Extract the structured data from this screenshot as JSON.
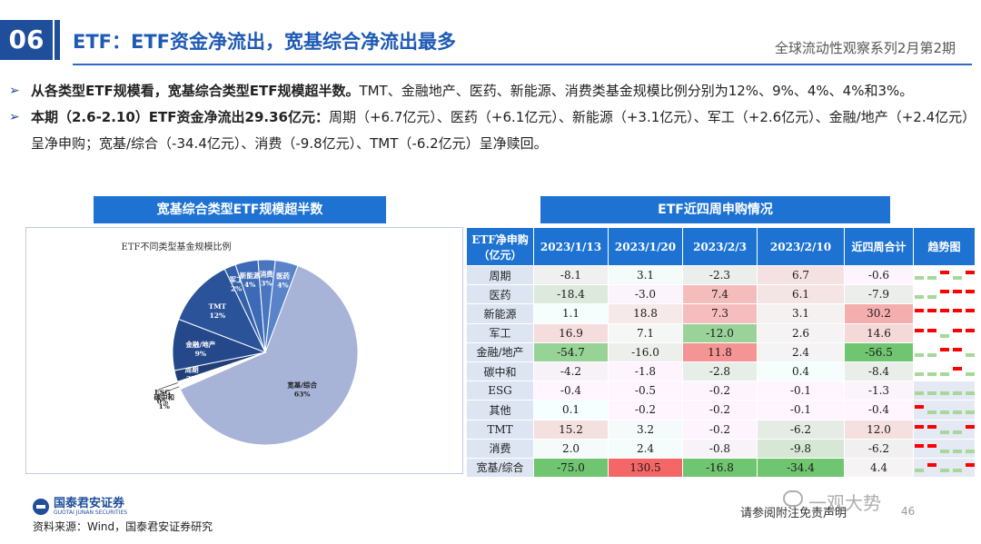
{
  "header": {
    "number": "06",
    "title": "ETF：ETF资金净流出，宽基综合净流出最多",
    "series": "全球流动性观察系列2月第2期"
  },
  "bullets": [
    {
      "bold": "从各类型ETF规模看，宽基综合类型ETF规模超半数。",
      "text": "TMT、金融地产、医药、新能源、消费类基金规模比例分别为12%、9%、4%、4%和3%。"
    },
    {
      "bold": "本期（2.6-2.10）ETF资金净流出29.36亿元：",
      "text": "周期（+6.7亿元）、医药（+6.1亿元）、新能源（+3.1亿元）、军工（+2.6亿元）、金融/地产（+2.4亿元）呈净申购；宽基/综合（-34.4亿元）、消费（-9.8亿元）、TMT（-6.2亿元）呈净赎回。"
    }
  ],
  "left_section_title": "宽基综合类型ETF规模超半数",
  "right_section_title": "ETF近四周申购情况",
  "chart_data": {
    "type": "pie",
    "title": "ETF不同类型基金规模比例",
    "slices": [
      {
        "label": "宽基/综合",
        "pct_label": "63%",
        "value": 63,
        "color": "#a7b4d8"
      },
      {
        "label": "碳中和",
        "pct_label": "1%",
        "value": 1,
        "color": "#ffffff"
      },
      {
        "label": "ESG",
        "pct_label": "0%",
        "value": 0.4,
        "color": "#ffffff"
      },
      {
        "label": "周期",
        "pct_label": "2%",
        "value": 2,
        "color": "#203f78"
      },
      {
        "label": "金融/地产",
        "pct_label": "9%",
        "value": 9,
        "color": "#24488a"
      },
      {
        "label": "TMT",
        "pct_label": "12%",
        "value": 12,
        "color": "#2a5399"
      },
      {
        "label": "军工",
        "pct_label": "2%",
        "value": 2,
        "color": "#3560aa"
      },
      {
        "label": "新能源",
        "pct_label": "4%",
        "value": 4,
        "color": "#3d6ab6"
      },
      {
        "label": "消费",
        "pct_label": "3%",
        "value": 3,
        "color": "#4a76c0"
      },
      {
        "label": "医药",
        "pct_label": "4%",
        "value": 4,
        "color": "#5a84c9"
      }
    ]
  },
  "table": {
    "header": [
      "ETF净申购（亿元）",
      "2023/1/13",
      "2023/1/20",
      "2023/2/3",
      "2023/2/10",
      "近四周合计",
      "趋势图"
    ],
    "rows": [
      {
        "name": "周期",
        "values": [
          "-8.1",
          "3.1",
          "-2.3",
          "6.7",
          "-0.6"
        ],
        "trend": [
          "g",
          "g",
          "r",
          "g",
          "r"
        ]
      },
      {
        "name": "医药",
        "values": [
          "-18.4",
          "-3.0",
          "7.4",
          "6.1",
          "-7.9"
        ],
        "trend": [
          "g",
          "g",
          "r",
          "r",
          "r"
        ]
      },
      {
        "name": "新能源",
        "values": [
          "1.1",
          "18.8",
          "7.3",
          "3.1",
          "30.2"
        ],
        "trend": [
          "r",
          "r",
          "r",
          "r",
          "r"
        ]
      },
      {
        "name": "军工",
        "values": [
          "16.9",
          "7.1",
          "-12.0",
          "2.6",
          "14.6"
        ],
        "trend": [
          "r",
          "r",
          "g",
          "r",
          "r"
        ]
      },
      {
        "name": "金融/地产",
        "values": [
          "-54.7",
          "-16.0",
          "11.8",
          "2.4",
          "-56.5"
        ],
        "trend": [
          "g",
          "g",
          "r",
          "r",
          "g"
        ]
      },
      {
        "name": "碳中和",
        "values": [
          "-4.2",
          "-1.8",
          "-2.8",
          "0.4",
          "-8.4"
        ],
        "trend": [
          "g",
          "g",
          "g",
          "r",
          "g"
        ]
      },
      {
        "name": "ESG",
        "values": [
          "-0.4",
          "-0.5",
          "-0.2",
          "-0.1",
          "-1.3"
        ],
        "trend": [
          "g",
          "g",
          "g",
          "g",
          "g"
        ]
      },
      {
        "name": "其他",
        "values": [
          "0.1",
          "-0.2",
          "-0.2",
          "-0.1",
          "-0.4"
        ],
        "trend": [
          "r",
          "g",
          "g",
          "g",
          "g"
        ]
      },
      {
        "name": "TMT",
        "values": [
          "15.2",
          "3.2",
          "-0.2",
          "-6.2",
          "12.0"
        ],
        "trend": [
          "r",
          "r",
          "g",
          "g",
          "r"
        ]
      },
      {
        "name": "消费",
        "values": [
          "2.0",
          "2.4",
          "-0.8",
          "-9.8",
          "-6.2"
        ],
        "trend": [
          "r",
          "r",
          "g",
          "g",
          "g"
        ]
      },
      {
        "name": "宽基/综合",
        "values": [
          "-75.0",
          "130.5",
          "-16.8",
          "-34.4",
          "4.4"
        ],
        "trend": [
          "g",
          "r",
          "g",
          "g",
          "r"
        ]
      }
    ]
  },
  "footer": {
    "logo_cn": "国泰君安证券",
    "logo_en": "GUOTAI JUNAN SECURITIES",
    "source": "资料来源：Wind，国泰君安证券研究",
    "disclaimer": "请参阅附注免责声明",
    "page": "46",
    "watermark": "一观大势"
  }
}
